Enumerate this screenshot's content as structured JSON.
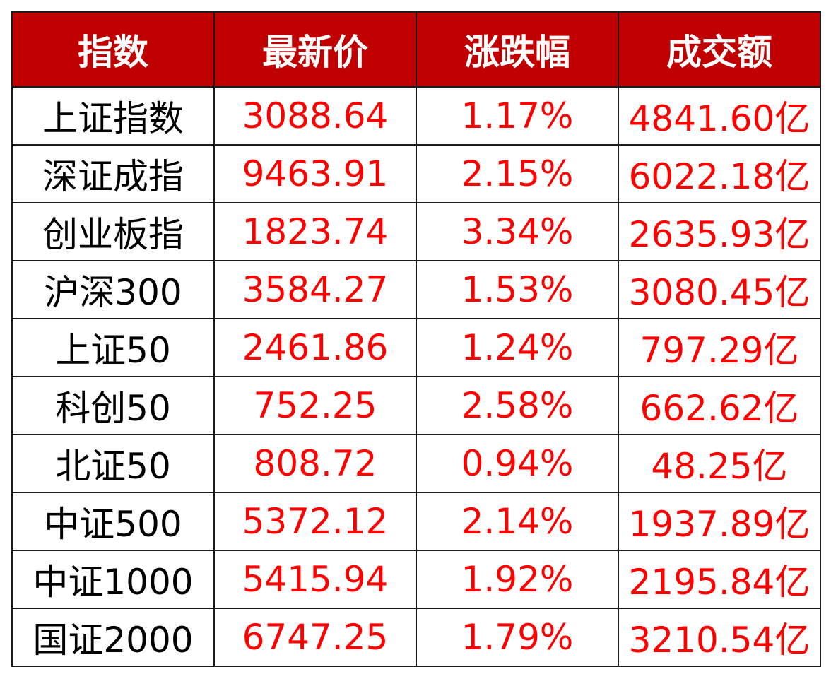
{
  "table": {
    "header_bg": "#c00000",
    "number_color": "#ff0000",
    "headers": [
      "指数",
      "最新价",
      "涨跌幅",
      "成交额"
    ],
    "rows": [
      [
        "上证指数",
        "3088.64",
        "1.17%",
        "4841.60亿"
      ],
      [
        "深证成指",
        "9463.91",
        "2.15%",
        "6022.18亿"
      ],
      [
        "创业板指",
        "1823.74",
        "3.34%",
        "2635.93亿"
      ],
      [
        "沪深300",
        "3584.27",
        "1.53%",
        "3080.45亿"
      ],
      [
        "上证50",
        "2461.86",
        "1.24%",
        "797.29亿"
      ],
      [
        "科创50",
        "752.25",
        "2.58%",
        "662.62亿"
      ],
      [
        "北证50",
        "808.72",
        "0.94%",
        "48.25亿"
      ],
      [
        "中证500",
        "5372.12",
        "2.14%",
        "1937.89亿"
      ],
      [
        "中证1000",
        "5415.94",
        "1.92%",
        "2195.84亿"
      ],
      [
        "国证2000",
        "6747.25",
        "1.79%",
        "3210.54亿"
      ]
    ]
  }
}
